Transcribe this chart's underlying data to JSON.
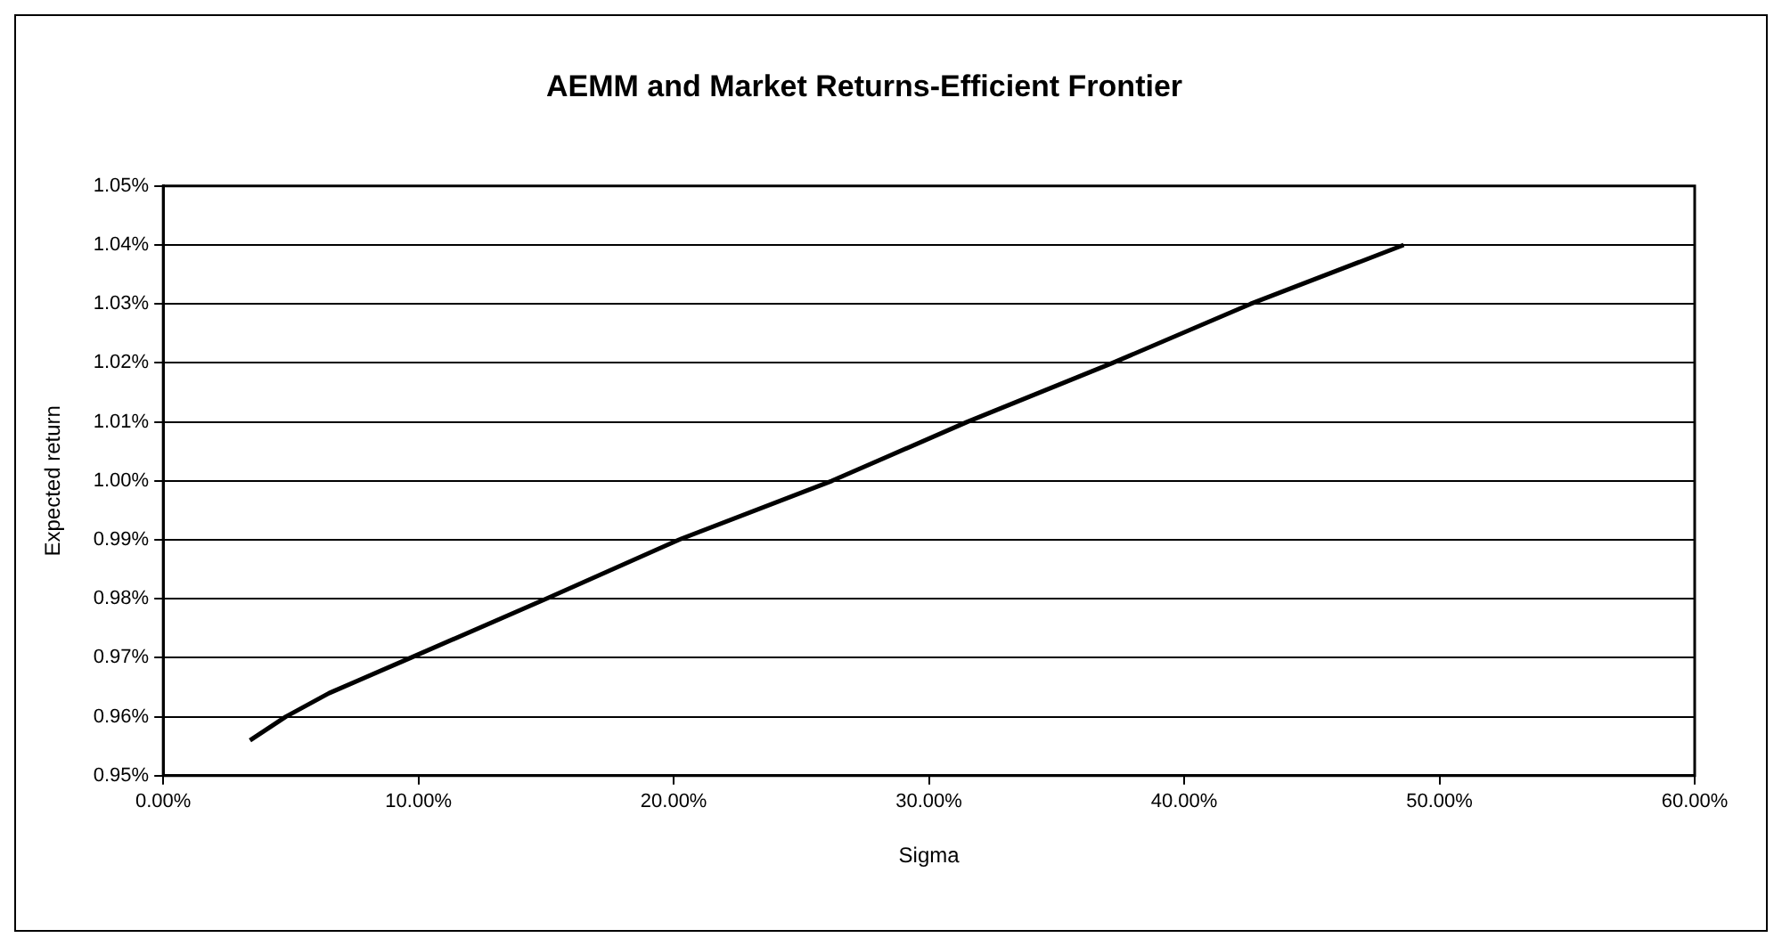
{
  "chart_data": {
    "type": "line",
    "title": "AEMM and Market Returns-Efficient Frontier",
    "xlabel": "Sigma",
    "ylabel": "Expected return",
    "x": [
      3.4,
      4.8,
      6.5,
      9.7,
      15,
      20.2,
      26.2,
      31.5,
      37.2,
      42.6,
      48.6
    ],
    "series": [
      {
        "color": "#000000",
        "values": [
          0.956,
          0.96,
          0.964,
          0.97,
          0.98,
          0.99,
          1.0,
          1.01,
          1.02,
          1.03,
          1.04
        ]
      }
    ],
    "xlim": [
      0,
      60
    ],
    "xticks": [
      {
        "value": 0,
        "label": "0.00%"
      },
      {
        "value": 10,
        "label": "10.00%"
      },
      {
        "value": 20,
        "label": "20.00%"
      },
      {
        "value": 30,
        "label": "30.00%"
      },
      {
        "value": 40,
        "label": "40.00%"
      },
      {
        "value": 50,
        "label": "50.00%"
      },
      {
        "value": 60,
        "label": "60.00%"
      }
    ],
    "ylim": [
      0.95,
      1.05
    ],
    "yticks": [
      {
        "value": 0.95,
        "label": "0.95%"
      },
      {
        "value": 0.96,
        "label": "0.96%"
      },
      {
        "value": 0.97,
        "label": "0.97%"
      },
      {
        "value": 0.98,
        "label": "0.98%"
      },
      {
        "value": 0.99,
        "label": "0.99%"
      },
      {
        "value": 1.0,
        "label": "1.00%"
      },
      {
        "value": 1.01,
        "label": "1.01%"
      },
      {
        "value": 1.02,
        "label": "1.02%"
      },
      {
        "value": 1.03,
        "label": "1.03%"
      },
      {
        "value": 1.04,
        "label": "1.04%"
      },
      {
        "value": 1.05,
        "label": "1.05%"
      }
    ],
    "grid": "y",
    "legend": false,
    "marker": "none",
    "line_style": "solid"
  }
}
